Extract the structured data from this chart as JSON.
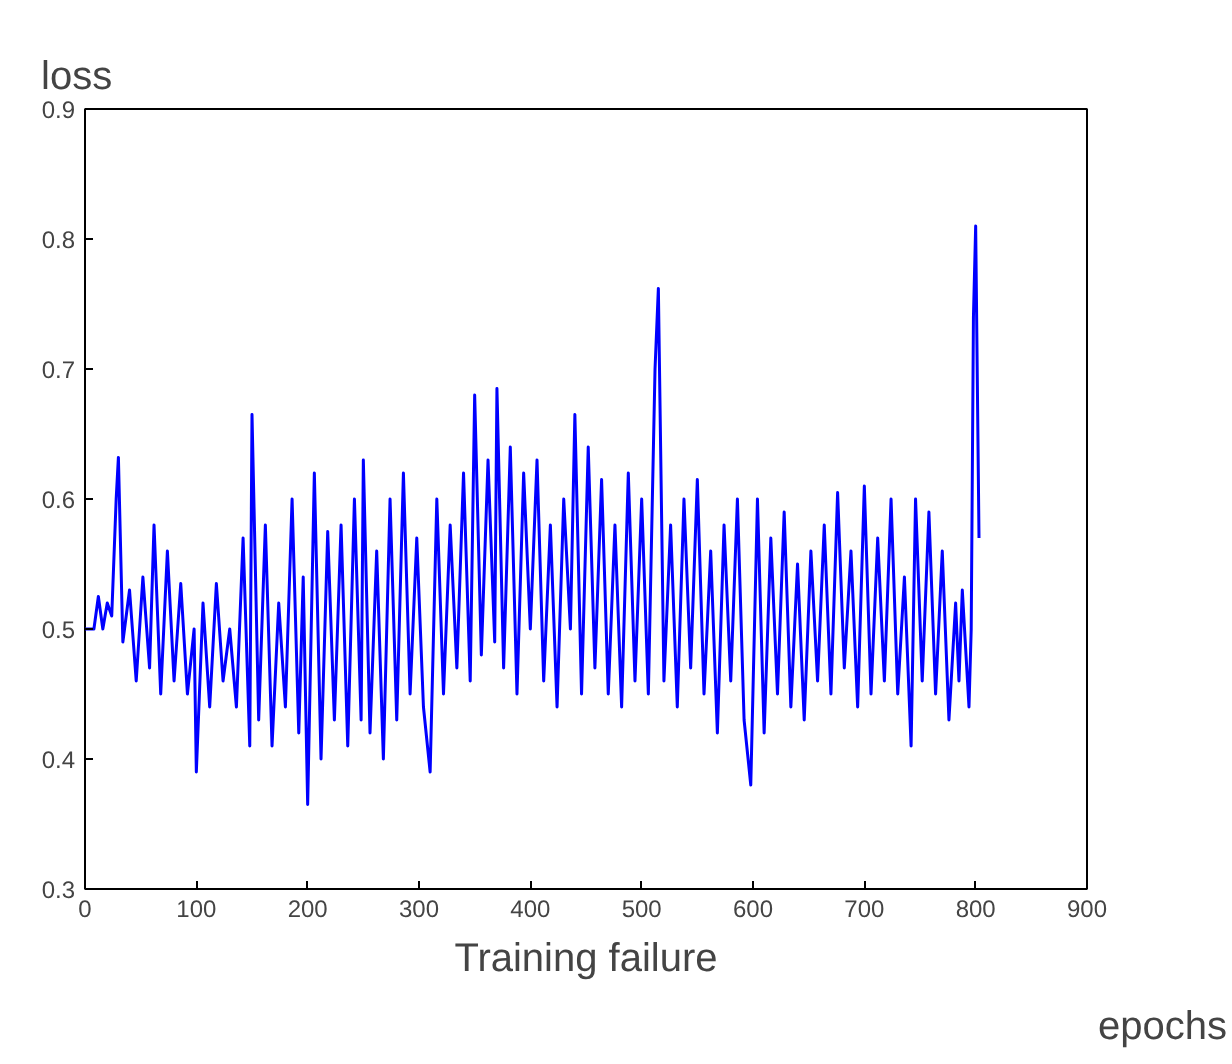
{
  "chart_data": {
    "type": "line",
    "xlabel": "epochs",
    "ylabel": "loss",
    "title": "Training failure",
    "x": [
      0,
      8,
      12,
      16,
      20,
      24,
      28,
      30,
      34,
      40,
      46,
      52,
      58,
      62,
      68,
      74,
      80,
      86,
      92,
      98,
      100,
      106,
      112,
      118,
      124,
      130,
      136,
      142,
      148,
      150,
      156,
      162,
      168,
      174,
      180,
      186,
      192,
      196,
      200,
      206,
      212,
      218,
      224,
      230,
      236,
      242,
      248,
      250,
      256,
      262,
      268,
      274,
      280,
      286,
      292,
      298,
      304,
      310,
      316,
      322,
      328,
      334,
      340,
      346,
      350,
      356,
      362,
      368,
      370,
      376,
      382,
      388,
      394,
      400,
      406,
      412,
      418,
      424,
      430,
      436,
      440,
      446,
      452,
      458,
      464,
      470,
      476,
      482,
      488,
      494,
      500,
      506,
      512,
      515,
      520,
      526,
      532,
      538,
      544,
      550,
      556,
      562,
      568,
      574,
      580,
      586,
      592,
      598,
      604,
      610,
      616,
      622,
      628,
      634,
      640,
      646,
      652,
      658,
      664,
      670,
      676,
      682,
      688,
      694,
      700,
      706,
      712,
      718,
      724,
      730,
      736,
      742,
      746,
      752,
      758,
      764,
      770,
      776,
      782,
      785,
      788,
      794,
      796,
      798,
      800,
      803
    ],
    "series": [
      {
        "color": "#0000ff",
        "values": [
          0.5,
          0.5,
          0.525,
          0.5,
          0.52,
          0.51,
          0.6,
          0.632,
          0.49,
          0.53,
          0.46,
          0.54,
          0.47,
          0.58,
          0.45,
          0.56,
          0.46,
          0.535,
          0.45,
          0.5,
          0.39,
          0.52,
          0.44,
          0.535,
          0.46,
          0.5,
          0.44,
          0.57,
          0.41,
          0.665,
          0.43,
          0.58,
          0.41,
          0.52,
          0.44,
          0.6,
          0.42,
          0.54,
          0.365,
          0.62,
          0.4,
          0.575,
          0.43,
          0.58,
          0.41,
          0.6,
          0.43,
          0.63,
          0.42,
          0.56,
          0.4,
          0.6,
          0.43,
          0.62,
          0.45,
          0.57,
          0.44,
          0.39,
          0.6,
          0.45,
          0.58,
          0.47,
          0.62,
          0.46,
          0.68,
          0.48,
          0.63,
          0.49,
          0.685,
          0.47,
          0.64,
          0.45,
          0.62,
          0.5,
          0.63,
          0.46,
          0.58,
          0.44,
          0.6,
          0.5,
          0.665,
          0.45,
          0.64,
          0.47,
          0.615,
          0.45,
          0.58,
          0.44,
          0.62,
          0.46,
          0.6,
          0.45,
          0.7,
          0.762,
          0.46,
          0.58,
          0.44,
          0.6,
          0.47,
          0.615,
          0.45,
          0.56,
          0.42,
          0.58,
          0.46,
          0.6,
          0.43,
          0.38,
          0.6,
          0.42,
          0.57,
          0.45,
          0.59,
          0.44,
          0.55,
          0.43,
          0.56,
          0.46,
          0.58,
          0.45,
          0.605,
          0.47,
          0.56,
          0.44,
          0.61,
          0.45,
          0.57,
          0.46,
          0.6,
          0.45,
          0.54,
          0.41,
          0.6,
          0.46,
          0.59,
          0.45,
          0.56,
          0.43,
          0.52,
          0.46,
          0.53,
          0.44,
          0.5,
          0.74,
          0.81,
          0.57
        ]
      }
    ],
    "xlim": [
      0,
      900
    ],
    "ylim": [
      0.3,
      0.9
    ],
    "xticks": [
      0,
      100,
      200,
      300,
      400,
      500,
      600,
      700,
      800,
      900
    ],
    "yticks": [
      0.3,
      0.4,
      0.5,
      0.6,
      0.7,
      0.8,
      0.9
    ],
    "grid": false,
    "marker": "none",
    "line_style": "solid"
  }
}
